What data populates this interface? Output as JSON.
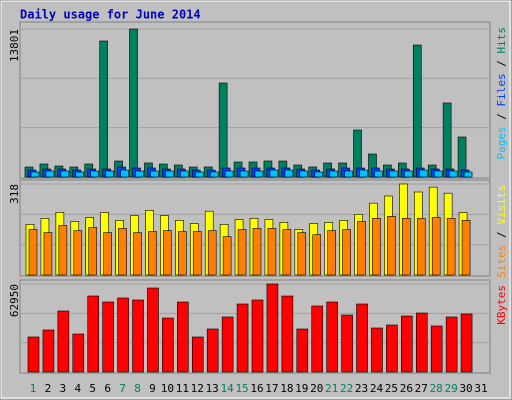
{
  "chart_data": [
    {
      "type": "bar",
      "title": "Daily usage for June 2014",
      "categories": [
        1,
        2,
        3,
        4,
        5,
        6,
        7,
        8,
        9,
        10,
        11,
        12,
        13,
        14,
        15,
        16,
        17,
        18,
        19,
        20,
        21,
        22,
        23,
        24,
        25,
        26,
        27,
        28,
        29,
        30,
        31
      ],
      "series": [
        {
          "name": "Hits",
          "color": "#008060",
          "values": [
            933,
            1212,
            1026,
            933,
            1212,
            12682,
            1492,
            13801,
            1306,
            1212,
            1119,
            933,
            933,
            8766,
            1399,
            1399,
            1492,
            1492,
            1119,
            933,
            1306,
            1306,
            4383,
            2145,
            1119,
            1306,
            12309,
            1119,
            6901,
            3730,
            null
          ]
        },
        {
          "name": "Files",
          "color": "#0040ff",
          "values": [
            650,
            746,
            746,
            650,
            746,
            746,
            930,
            840,
            840,
            746,
            746,
            650,
            650,
            840,
            840,
            840,
            840,
            840,
            746,
            650,
            746,
            840,
            840,
            840,
            746,
            746,
            840,
            746,
            746,
            650,
            null
          ]
        },
        {
          "name": "Pages",
          "color": "#00c0ff",
          "values": [
            466,
            560,
            560,
            466,
            560,
            560,
            650,
            560,
            560,
            560,
            560,
            466,
            466,
            560,
            560,
            560,
            650,
            650,
            560,
            466,
            560,
            560,
            650,
            560,
            560,
            560,
            650,
            560,
            560,
            466,
            null
          ]
        }
      ],
      "ylim": [
        0,
        13801
      ],
      "yticks": [
        13801
      ],
      "legend_separator": " / ",
      "highlight_categories": [
        1,
        7,
        8,
        14,
        15,
        21,
        22,
        28,
        29
      ],
      "highlight_color": "#008060"
    },
    {
      "type": "bar",
      "categories": [
        1,
        2,
        3,
        4,
        5,
        6,
        7,
        8,
        9,
        10,
        11,
        12,
        13,
        14,
        15,
        16,
        17,
        18,
        19,
        20,
        21,
        22,
        23,
        24,
        25,
        26,
        27,
        28,
        29,
        30,
        31
      ],
      "series": [
        {
          "name": "Visits",
          "color": "#ffff00",
          "values": [
            177,
            198,
            219,
            187,
            201,
            219,
            191,
            208,
            226,
            208,
            191,
            180,
            223,
            177,
            194,
            198,
            194,
            184,
            159,
            180,
            184,
            191,
            212,
            251,
            276,
            318,
            290,
            307,
            286,
            219,
            null
          ]
        },
        {
          "name": "Sites",
          "color": "#ff8000",
          "values": [
            159,
            148,
            173,
            155,
            166,
            148,
            163,
            148,
            152,
            155,
            152,
            152,
            155,
            134,
            159,
            163,
            163,
            159,
            148,
            141,
            155,
            159,
            187,
            198,
            205,
            198,
            198,
            201,
            198,
            191,
            null
          ]
        }
      ],
      "ylim": [
        0,
        318
      ],
      "yticks": [
        318
      ],
      "legend_separator": " / "
    },
    {
      "type": "bar",
      "categories": [
        1,
        2,
        3,
        4,
        5,
        6,
        7,
        8,
        9,
        10,
        11,
        12,
        13,
        14,
        15,
        16,
        17,
        18,
        19,
        20,
        21,
        22,
        23,
        24,
        25,
        26,
        27,
        28,
        29,
        30,
        31
      ],
      "series": [
        {
          "name": "KBytes",
          "color": "#ff0000",
          "values": [
            25036,
            30043,
            43633,
            27181,
            54363,
            50071,
            52932,
            51502,
            60085,
            38626,
            50071,
            25036,
            30758,
            39342,
            48640,
            51502,
            62950,
            54363,
            30758,
            47210,
            50071,
            40772,
            48640,
            31473,
            33619,
            40057,
            42203,
            32904,
            39342,
            41487,
            null
          ]
        }
      ],
      "ylim": [
        0,
        62950
      ],
      "yticks": [
        62950
      ]
    }
  ]
}
